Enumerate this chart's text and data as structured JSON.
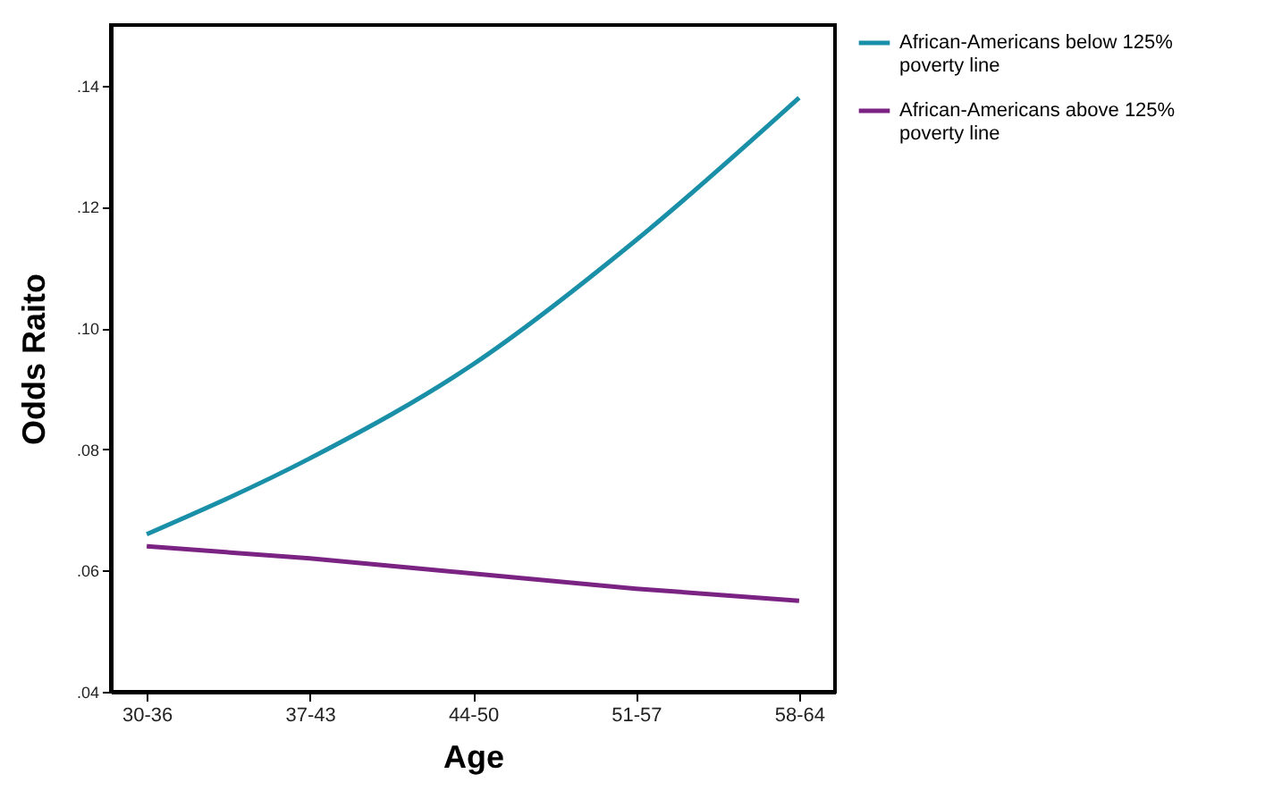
{
  "chart_data": {
    "type": "line",
    "xlabel": "Age",
    "ylabel": "Odds Raito",
    "categories": [
      "30-36",
      "37-43",
      "44-50",
      "51-57",
      "58-64"
    ],
    "series": [
      {
        "name": "African-Americans below 125% poverty line",
        "color": "#1a8fa8",
        "values": [
          0.066,
          0.0785,
          0.094,
          0.1145,
          0.138
        ]
      },
      {
        "name": "African-Americans above 125% poverty line",
        "color": "#7b2383",
        "values": [
          0.064,
          0.062,
          0.0595,
          0.057,
          0.055
        ]
      }
    ],
    "ylim": [
      0.04,
      0.15
    ],
    "yticks": [
      {
        "value": 0.04,
        "label": ".04"
      },
      {
        "value": 0.06,
        "label": ".06"
      },
      {
        "value": 0.08,
        "label": ".08"
      },
      {
        "value": 0.1,
        "label": ".10"
      },
      {
        "value": 0.12,
        "label": ".12"
      },
      {
        "value": 0.14,
        "label": ".14"
      }
    ],
    "grid": false,
    "legend": "top right",
    "marker": "none",
    "line_style": "solid"
  }
}
